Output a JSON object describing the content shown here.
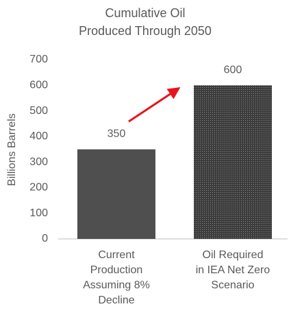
{
  "chart_data": {
    "type": "bar",
    "title": [
      "Cumulative Oil",
      "Produced Through 2050"
    ],
    "y_label": "Billions Barrels",
    "categories": [
      [
        "Current",
        "Production",
        "Assuming 8%",
        "Decline"
      ],
      [
        "Oil Required",
        "in IEA Net Zero",
        "Scenario"
      ]
    ],
    "values": [
      350,
      600
    ],
    "colors": [
      "#4f4f4f",
      "#3c3c3c"
    ],
    "fill_styles": [
      "solid",
      "dotted"
    ],
    "ylim": [
      0,
      700
    ],
    "yticks": [
      0,
      100,
      200,
      300,
      400,
      500,
      600,
      700
    ],
    "data_labels": true,
    "grid": false
  }
}
